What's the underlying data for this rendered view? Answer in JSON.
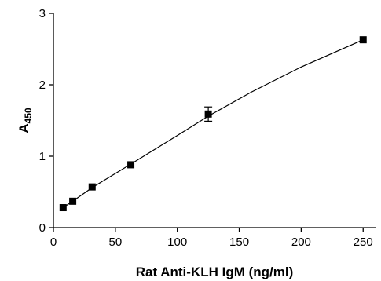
{
  "chart_data": {
    "type": "scatter",
    "xlabel": "Rat Anti-KLH IgM (ng/ml)",
    "ylabel_main": "A",
    "ylabel_sub": "450",
    "xlim": [
      0,
      260
    ],
    "ylim": [
      0,
      3
    ],
    "xticks": [
      0,
      50,
      100,
      150,
      200,
      250
    ],
    "yticks": [
      0,
      1,
      2,
      3
    ],
    "grid": false,
    "legend": "none",
    "colors": {
      "marker": "#000000",
      "curve": "#000000",
      "axis": "#000000"
    },
    "points": [
      {
        "x": 7.8,
        "y": 0.28
      },
      {
        "x": 15.6,
        "y": 0.37
      },
      {
        "x": 31.25,
        "y": 0.57
      },
      {
        "x": 62.5,
        "y": 0.88
      },
      {
        "x": 125,
        "y": 1.59,
        "err": 0.1
      },
      {
        "x": 250,
        "y": 2.63
      }
    ],
    "fit_curve": {
      "x": [
        0,
        7.8,
        15.6,
        31.25,
        62.5,
        100,
        125,
        160,
        200,
        250
      ],
      "y": [
        0.19,
        0.28,
        0.37,
        0.56,
        0.89,
        1.29,
        1.56,
        1.9,
        2.25,
        2.63
      ]
    }
  }
}
